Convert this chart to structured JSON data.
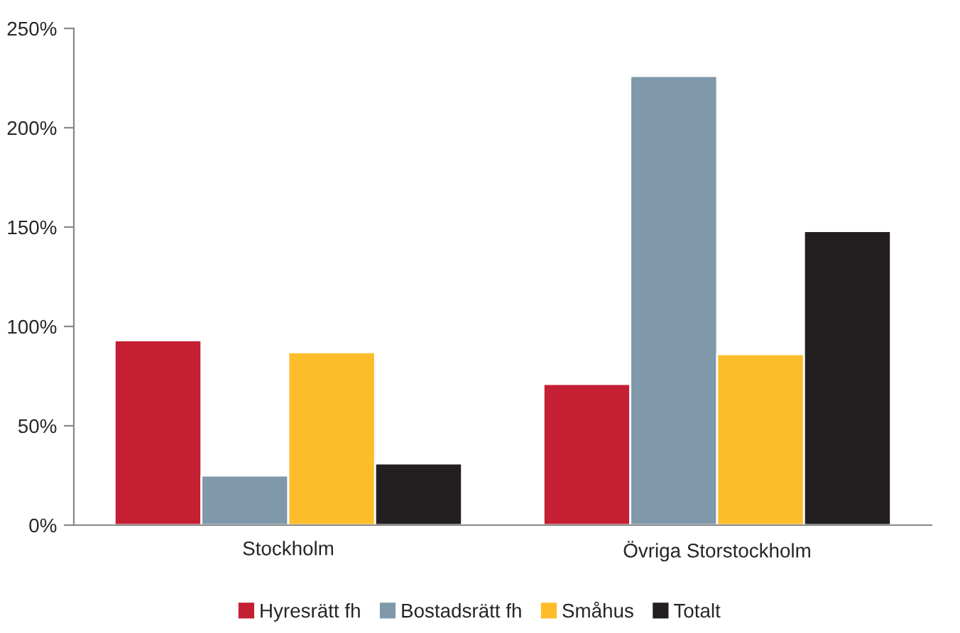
{
  "chart_data": {
    "type": "bar",
    "categories": [
      "Stockholm",
      "Övriga Storstockholm"
    ],
    "series": [
      {
        "name": "Hyresrätt fh",
        "color": "#c41f33",
        "values": [
          93,
          71
        ]
      },
      {
        "name": "Bostadsrätt fh",
        "color": "#7f98aa",
        "values": [
          25,
          226
        ]
      },
      {
        "name": "Småhus",
        "color": "#fdbd2b",
        "values": [
          87,
          86
        ]
      },
      {
        "name": "Totalt",
        "color": "#231f20",
        "values": [
          31,
          148
        ]
      }
    ],
    "ylim": [
      0,
      250
    ],
    "yticks": [
      {
        "value": 0,
        "label": "0%"
      },
      {
        "value": 50,
        "label": "50%"
      },
      {
        "value": 100,
        "label": "100%"
      },
      {
        "value": 150,
        "label": "150%"
      },
      {
        "value": 200,
        "label": "200%"
      },
      {
        "value": 250,
        "label": "250%"
      }
    ],
    "grid": false,
    "legend": "bottom"
  }
}
